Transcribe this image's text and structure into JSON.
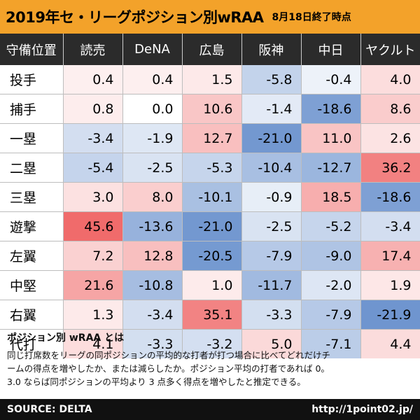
{
  "header": {
    "title": "2019年セ・リーグポジション別wRAA",
    "subtitle": "8月18日終了時点"
  },
  "chart_data": {
    "type": "heatmap",
    "corner_label": "守備位置",
    "columns": [
      "読売",
      "DeNA",
      "広島",
      "阪神",
      "中日",
      "ヤクルト"
    ],
    "rows": [
      {
        "label": "投手",
        "values": [
          "0.4",
          "0.4",
          "1.5",
          "-5.8",
          "-0.4",
          "4.0"
        ]
      },
      {
        "label": "捕手",
        "values": [
          "0.8",
          "0.0",
          "10.6",
          "-1.4",
          "-18.6",
          "8.6"
        ]
      },
      {
        "label": "一塁",
        "values": [
          "-3.4",
          "-1.9",
          "12.7",
          "-21.0",
          "11.0",
          "2.6"
        ]
      },
      {
        "label": "二塁",
        "values": [
          "-5.4",
          "-2.5",
          "-5.3",
          "-10.4",
          "-12.7",
          "36.2"
        ]
      },
      {
        "label": "三塁",
        "values": [
          "3.0",
          "8.0",
          "-10.1",
          "-0.9",
          "18.5",
          "-18.6"
        ]
      },
      {
        "label": "遊撃",
        "values": [
          "45.6",
          "-13.6",
          "-21.0",
          "-2.5",
          "-5.2",
          "-3.4"
        ]
      },
      {
        "label": "左翼",
        "values": [
          "7.2",
          "12.8",
          "-20.5",
          "-7.9",
          "-9.0",
          "17.4"
        ]
      },
      {
        "label": "中堅",
        "values": [
          "21.6",
          "-10.8",
          "1.0",
          "-11.7",
          "-2.0",
          "1.9"
        ]
      },
      {
        "label": "右翼",
        "values": [
          "1.3",
          "-3.4",
          "35.1",
          "-3.3",
          "-7.9",
          "-21.9"
        ]
      },
      {
        "label": "代打",
        "values": [
          "4.1",
          "-3.3",
          "-3.2",
          "5.0",
          "-7.1",
          "4.4"
        ]
      }
    ],
    "color_scale": {
      "positive": "#f06b6b",
      "negative": "#6f95cf",
      "neutral": "#ffffff"
    }
  },
  "description": {
    "title": "ポジション別 wRAA とは",
    "lines": [
      "同じ打席数をリーグの同ポジションの平均的な打者が打つ場合に比べてどれだけチ",
      "ームの得点を増やしたか、または減らしたか。ポジション平均の打者であれば 0。",
      "3.0 ならば同ポジションの平均より 3 点多く得点を増やしたと推定できる。"
    ]
  },
  "footer": {
    "source": "SOURCE: DELTA",
    "url": "http://1point02.jp/"
  }
}
